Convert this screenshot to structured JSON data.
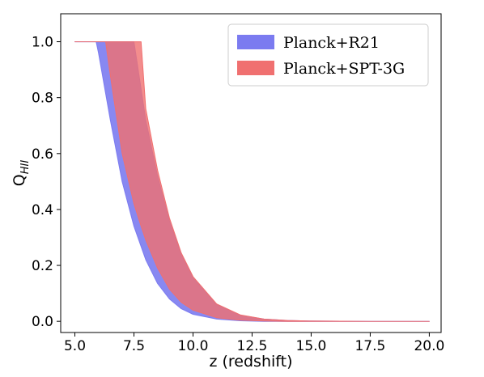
{
  "chart_data": {
    "type": "area",
    "xlabel": "z (redshift)",
    "ylabel_main": "Q",
    "ylabel_sub": "HII",
    "xlim": [
      4.4,
      20.5
    ],
    "ylim": [
      -0.04,
      1.1
    ],
    "xticks": [
      "5.0",
      "7.5",
      "10.0",
      "12.5",
      "15.0",
      "17.5",
      "20.0"
    ],
    "xtick_values": [
      5.0,
      7.5,
      10.0,
      12.5,
      15.0,
      17.5,
      20.0
    ],
    "yticks": [
      "0.0",
      "0.2",
      "0.4",
      "0.6",
      "0.8",
      "1.0"
    ],
    "ytick_values": [
      0.0,
      0.2,
      0.4,
      0.6,
      0.8,
      1.0
    ],
    "legend_position": "top-right",
    "series": [
      {
        "name": "Planck+R21",
        "color": "#7b7bf0",
        "x": [
          5.0,
          5.9,
          6.0,
          6.5,
          7.0,
          7.5,
          8.0,
          8.5,
          9.0,
          9.5,
          10.0,
          11.0,
          12.0,
          13.0,
          14.0,
          15.0,
          17.5,
          20.0
        ],
        "upper": [
          1.0,
          1.0,
          1.0,
          1.0,
          1.0,
          1.0,
          0.72,
          0.52,
          0.36,
          0.24,
          0.155,
          0.06,
          0.022,
          0.008,
          0.003,
          0.001,
          0.0,
          0.0
        ],
        "lower": [
          1.0,
          1.0,
          0.96,
          0.72,
          0.5,
          0.34,
          0.22,
          0.135,
          0.08,
          0.045,
          0.025,
          0.008,
          0.002,
          0.0,
          0.0,
          0.0,
          0.0,
          0.0
        ]
      },
      {
        "name": "Planck+SPT-3G",
        "color": "#f07070",
        "x": [
          5.0,
          6.3,
          6.5,
          7.0,
          7.5,
          7.8,
          8.0,
          8.5,
          9.0,
          9.5,
          10.0,
          11.0,
          12.0,
          13.0,
          14.0,
          15.0,
          17.5,
          20.0
        ],
        "upper": [
          1.0,
          1.0,
          1.0,
          1.0,
          1.0,
          1.0,
          0.76,
          0.54,
          0.37,
          0.245,
          0.16,
          0.062,
          0.023,
          0.008,
          0.003,
          0.001,
          0.0,
          0.0
        ],
        "lower": [
          1.0,
          1.0,
          0.88,
          0.6,
          0.42,
          0.34,
          0.29,
          0.19,
          0.115,
          0.068,
          0.04,
          0.013,
          0.004,
          0.001,
          0.0,
          0.0,
          0.0,
          0.0
        ]
      }
    ]
  }
}
